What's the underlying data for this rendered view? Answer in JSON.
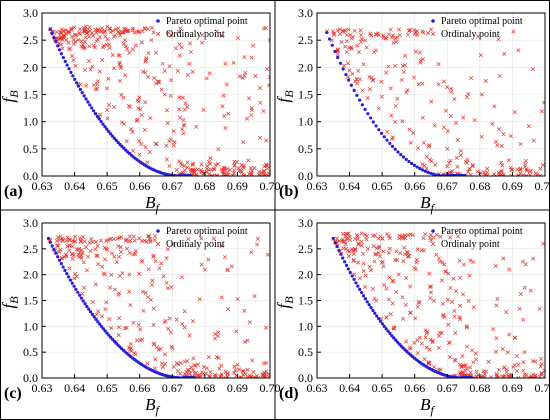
{
  "colors": {
    "pareto": "#2a1fd6",
    "ordinary": "#e8332b",
    "grid": "#e3e3e3",
    "frame": "#000000"
  },
  "axes_text": {
    "ylabel_main": "f",
    "ylabel_sub": "B",
    "xlabel_main": "B",
    "xlabel_sub": "f"
  },
  "chart_data": [
    {
      "panel": "(a)",
      "type": "scatter",
      "xlim": [
        0.63,
        0.7
      ],
      "ylim": [
        0.0,
        3.0
      ],
      "x_ticks": [
        "0.63",
        "0.64",
        "0.65",
        "0.66",
        "0.67",
        "0.68",
        "0.69",
        "0.70"
      ],
      "y_ticks": [
        "0.0",
        "0.5",
        "1.0",
        "1.5",
        "2.0",
        "2.5",
        "3.0"
      ],
      "grid": true,
      "legend_position": "top-right",
      "series": [
        {
          "name": "Pareto optimal point",
          "marker": "dot",
          "curve": {
            "x_start": 0.6325,
            "x_end": 0.6725,
            "y_start": 2.7,
            "count": 70,
            "tail_to": 0.676
          }
        },
        {
          "name": "Ordinaly point",
          "marker": "cross",
          "cloud": {
            "count": 420,
            "seed": 11,
            "ymax": 2.75,
            "bottom_cluster": [
              0.672,
              0.7
            ]
          }
        }
      ]
    },
    {
      "panel": "(b)",
      "type": "scatter",
      "xlim": [
        0.63,
        0.7
      ],
      "ylim": [
        0.0,
        3.0
      ],
      "x_ticks": [
        "0.63",
        "0.64",
        "0.65",
        "0.66",
        "0.67",
        "0.68",
        "0.69",
        "0.70"
      ],
      "y_ticks": [
        "0.0",
        "0.5",
        "1.0",
        "1.5",
        "2.0",
        "2.5",
        "3.0"
      ],
      "grid": true,
      "legend_position": "top-right",
      "series": [
        {
          "name": "Pareto optimal point",
          "marker": "dot",
          "curve": {
            "x_start": 0.633,
            "x_end": 0.67,
            "y_start": 2.64,
            "count": 45,
            "tail_to": 0.676
          }
        },
        {
          "name": "Ordinaly point",
          "marker": "cross",
          "cloud": {
            "count": 260,
            "seed": 27,
            "ymax": 2.7,
            "bottom_cluster": [
              0.67,
              0.7
            ]
          }
        }
      ]
    },
    {
      "panel": "(c)",
      "type": "scatter",
      "xlim": [
        0.63,
        0.7
      ],
      "ylim": [
        0.0,
        3.0
      ],
      "x_ticks": [
        "0.63",
        "0.64",
        "0.65",
        "0.66",
        "0.67",
        "0.68",
        "0.69",
        "0.70"
      ],
      "y_ticks": [
        "0.0",
        "0.5",
        "1.0",
        "1.5",
        "2.0",
        "2.5",
        "3.0"
      ],
      "grid": true,
      "legend_position": "top-right",
      "series": [
        {
          "name": "Pareto optimal point",
          "marker": "dot",
          "curve": {
            "x_start": 0.632,
            "x_end": 0.6735,
            "y_start": 2.7,
            "count": 75,
            "tail_to": 0.677
          }
        },
        {
          "name": "Ordinaly point",
          "marker": "cross",
          "cloud": {
            "count": 340,
            "seed": 43,
            "ymax": 2.75,
            "bottom_cluster": [
              0.672,
              0.7
            ]
          }
        }
      ]
    },
    {
      "panel": "(d)",
      "type": "scatter",
      "xlim": [
        0.63,
        0.7
      ],
      "ylim": [
        0.0,
        3.0
      ],
      "x_ticks": [
        "0.63",
        "0.64",
        "0.65",
        "0.66",
        "0.67",
        "0.68",
        "0.69",
        "0.70"
      ],
      "y_ticks": [
        "0.0",
        "0.5",
        "1.0",
        "1.5",
        "2.0",
        "2.5",
        "3.0"
      ],
      "grid": true,
      "legend_position": "top-right",
      "series": [
        {
          "name": "Pareto optimal point",
          "marker": "dot",
          "curve": {
            "x_start": 0.635,
            "x_end": 0.675,
            "y_start": 2.7,
            "count": 70,
            "tail_to": 0.678
          }
        },
        {
          "name": "Ordinaly point",
          "marker": "cross",
          "cloud": {
            "count": 360,
            "seed": 59,
            "ymax": 2.8,
            "bottom_cluster": [
              0.674,
              0.7
            ]
          }
        }
      ]
    }
  ]
}
